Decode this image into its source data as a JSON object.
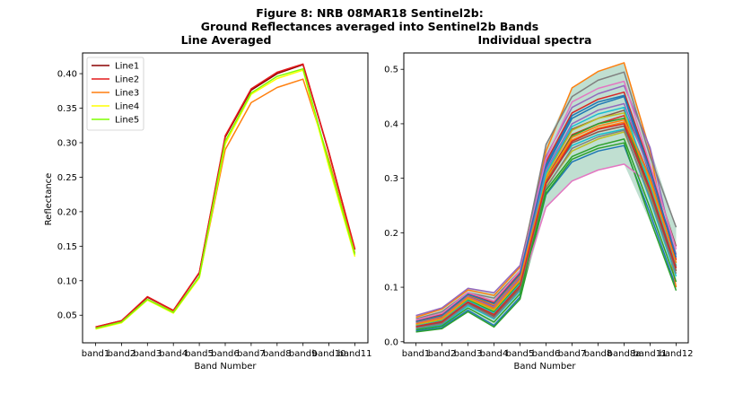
{
  "figure": {
    "title_line1": "Figure 8: NRB 08MAR18  Sentinel2b:",
    "title_line2": "Ground Reflectances averaged into Sentinel2b Bands"
  },
  "chart_data": [
    {
      "type": "line",
      "title": "Line Averaged",
      "xlabel": "Band Number",
      "ylabel": "Reflectance",
      "categories": [
        "band1",
        "band2",
        "band3",
        "band4",
        "band5",
        "band6",
        "band7",
        "band8",
        "band9",
        "band10",
        "band11"
      ],
      "ylim": [
        0.01,
        0.43
      ],
      "yticks": [
        0.05,
        0.1,
        0.15,
        0.2,
        0.25,
        0.3,
        0.35,
        0.4
      ],
      "ytick_labels": [
        "0.05",
        "0.10",
        "0.15",
        "0.20",
        "0.25",
        "0.30",
        "0.35",
        "0.40"
      ],
      "grid": false,
      "legend": "top-left",
      "series": [
        {
          "name": "Line1",
          "color": "#8b0000",
          "values": [
            0.033,
            0.042,
            0.076,
            0.057,
            0.111,
            0.308,
            0.376,
            0.4,
            0.413,
            0.285,
            0.145
          ]
        },
        {
          "name": "Line2",
          "color": "#e41a1c",
          "values": [
            0.033,
            0.042,
            0.077,
            0.057,
            0.112,
            0.31,
            0.378,
            0.402,
            0.414,
            0.286,
            0.146
          ]
        },
        {
          "name": "Line3",
          "color": "#ff7f0e",
          "values": [
            0.031,
            0.04,
            0.073,
            0.055,
            0.105,
            0.29,
            0.358,
            0.38,
            0.392,
            0.275,
            0.14
          ]
        },
        {
          "name": "Line4",
          "color": "#ffff00",
          "values": [
            0.03,
            0.039,
            0.072,
            0.053,
            0.104,
            0.298,
            0.37,
            0.393,
            0.405,
            0.265,
            0.135
          ]
        },
        {
          "name": "Line5",
          "color": "#7fff00",
          "values": [
            0.031,
            0.04,
            0.073,
            0.054,
            0.106,
            0.302,
            0.372,
            0.396,
            0.407,
            0.27,
            0.138
          ]
        }
      ]
    },
    {
      "type": "line",
      "title": "Individual spectra",
      "xlabel": "Band Number",
      "ylabel": "",
      "categories": [
        "band1",
        "band2",
        "band3",
        "band4",
        "band5",
        "band6",
        "band7",
        "band8",
        "band8a",
        "band11",
        "band12"
      ],
      "ylim": [
        -0.002,
        0.53
      ],
      "yticks": [
        0.0,
        0.1,
        0.2,
        0.3,
        0.4,
        0.5
      ],
      "ytick_labels": [
        "0.0",
        "0.1",
        "0.2",
        "0.3",
        "0.4",
        "0.5"
      ],
      "grid": false,
      "legend": "none",
      "envelope": {
        "upper": [
          0.048,
          0.062,
          0.098,
          0.09,
          0.14,
          0.362,
          0.466,
          0.496,
          0.512,
          0.356,
          0.21
        ],
        "lower": [
          0.018,
          0.024,
          0.055,
          0.026,
          0.077,
          0.247,
          0.295,
          0.315,
          0.326,
          0.22,
          0.093
        ]
      },
      "series": [
        {
          "color": "#1f77b4",
          "values": [
            0.02,
            0.026,
            0.058,
            0.03,
            0.082,
            0.27,
            0.33,
            0.35,
            0.36,
            0.235,
            0.1
          ]
        },
        {
          "color": "#ff7f0e",
          "values": [
            0.045,
            0.06,
            0.095,
            0.085,
            0.137,
            0.35,
            0.466,
            0.496,
            0.512,
            0.35,
            0.1
          ]
        },
        {
          "color": "#2ca02c",
          "values": [
            0.018,
            0.024,
            0.055,
            0.027,
            0.078,
            0.272,
            0.335,
            0.355,
            0.365,
            0.225,
            0.094
          ]
        },
        {
          "color": "#d62728",
          "values": [
            0.03,
            0.04,
            0.08,
            0.06,
            0.11,
            0.3,
            0.38,
            0.4,
            0.415,
            0.3,
            0.16
          ]
        },
        {
          "color": "#9467bd",
          "values": [
            0.048,
            0.062,
            0.098,
            0.09,
            0.14,
            0.34,
            0.43,
            0.455,
            0.47,
            0.356,
            0.15
          ]
        },
        {
          "color": "#8c564b",
          "values": [
            0.035,
            0.045,
            0.085,
            0.065,
            0.12,
            0.31,
            0.39,
            0.41,
            0.425,
            0.32,
            0.175
          ]
        },
        {
          "color": "#e377c2",
          "values": [
            0.028,
            0.036,
            0.068,
            0.045,
            0.095,
            0.247,
            0.295,
            0.315,
            0.326,
            0.29,
            0.15
          ]
        },
        {
          "color": "#7f7f7f",
          "values": [
            0.042,
            0.055,
            0.09,
            0.08,
            0.13,
            0.362,
            0.45,
            0.48,
            0.495,
            0.34,
            0.21
          ]
        },
        {
          "color": "#bcbd22",
          "values": [
            0.026,
            0.034,
            0.072,
            0.048,
            0.1,
            0.285,
            0.35,
            0.372,
            0.385,
            0.27,
            0.13
          ]
        },
        {
          "color": "#17becf",
          "values": [
            0.024,
            0.031,
            0.066,
            0.042,
            0.093,
            0.3,
            0.36,
            0.38,
            0.39,
            0.26,
            0.12
          ]
        },
        {
          "color": "#1f77b4",
          "values": [
            0.032,
            0.042,
            0.082,
            0.062,
            0.115,
            0.32,
            0.41,
            0.435,
            0.45,
            0.305,
            0.14
          ]
        },
        {
          "color": "#ff7f0e",
          "values": [
            0.036,
            0.047,
            0.086,
            0.068,
            0.122,
            0.3,
            0.37,
            0.392,
            0.403,
            0.295,
            0.145
          ]
        },
        {
          "color": "#2ca02c",
          "values": [
            0.03,
            0.039,
            0.077,
            0.055,
            0.108,
            0.296,
            0.378,
            0.4,
            0.41,
            0.28,
            0.135
          ]
        },
        {
          "color": "#d62728",
          "values": [
            0.038,
            0.05,
            0.088,
            0.072,
            0.126,
            0.33,
            0.42,
            0.445,
            0.458,
            0.32,
            0.15
          ]
        },
        {
          "color": "#9467bd",
          "values": [
            0.034,
            0.044,
            0.083,
            0.064,
            0.118,
            0.315,
            0.4,
            0.425,
            0.437,
            0.31,
            0.16
          ]
        },
        {
          "color": "#8c564b",
          "values": [
            0.027,
            0.035,
            0.071,
            0.047,
            0.099,
            0.29,
            0.365,
            0.385,
            0.396,
            0.275,
            0.13
          ]
        },
        {
          "color": "#e377c2",
          "values": [
            0.04,
            0.052,
            0.09,
            0.075,
            0.13,
            0.335,
            0.44,
            0.465,
            0.478,
            0.325,
            0.17
          ]
        },
        {
          "color": "#7f7f7f",
          "values": [
            0.025,
            0.033,
            0.069,
            0.044,
            0.096,
            0.282,
            0.355,
            0.376,
            0.388,
            0.265,
            0.125
          ]
        },
        {
          "color": "#bcbd22",
          "values": [
            0.031,
            0.041,
            0.079,
            0.058,
            0.112,
            0.305,
            0.388,
            0.41,
            0.42,
            0.29,
            0.14
          ]
        },
        {
          "color": "#17becf",
          "values": [
            0.029,
            0.038,
            0.075,
            0.052,
            0.106,
            0.31,
            0.395,
            0.418,
            0.43,
            0.285,
            0.138
          ]
        },
        {
          "color": "#1f77b4",
          "values": [
            0.037,
            0.048,
            0.087,
            0.07,
            0.124,
            0.325,
            0.415,
            0.44,
            0.452,
            0.315,
            0.155
          ]
        },
        {
          "color": "#2ca02c",
          "values": [
            0.022,
            0.029,
            0.062,
            0.036,
            0.088,
            0.278,
            0.34,
            0.36,
            0.372,
            0.245,
            0.11
          ]
        },
        {
          "color": "#ff7f0e",
          "values": [
            0.033,
            0.043,
            0.081,
            0.061,
            0.114,
            0.298,
            0.375,
            0.396,
            0.407,
            0.3,
            0.145
          ]
        },
        {
          "color": "#d62728",
          "values": [
            0.028,
            0.037,
            0.073,
            0.05,
            0.103,
            0.292,
            0.368,
            0.39,
            0.4,
            0.28,
            0.135
          ]
        }
      ]
    }
  ]
}
